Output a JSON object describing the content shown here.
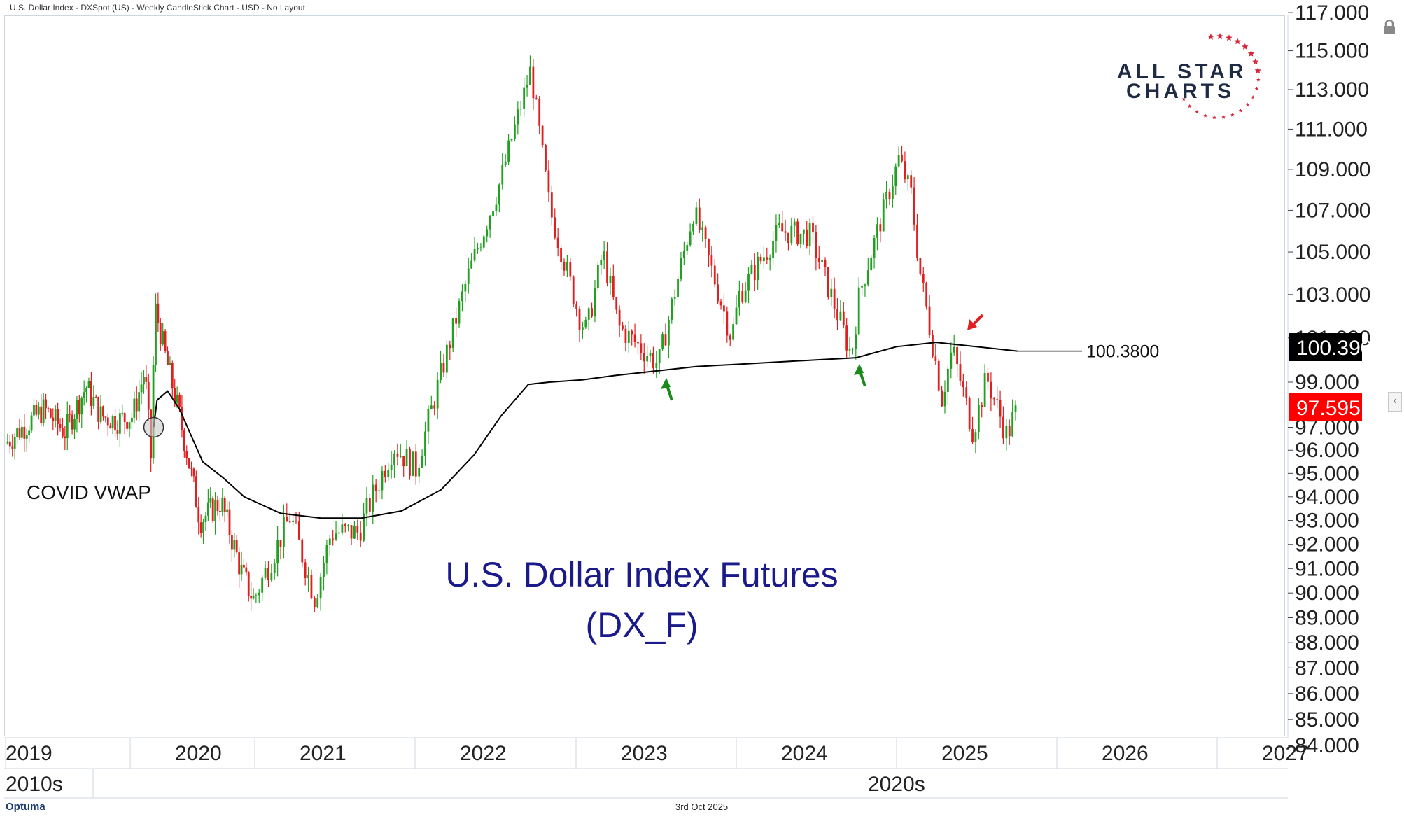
{
  "header": {
    "text": "U.S. Dollar Index - DXSpot (US) - Weekly CandleStick Chart - USD - No Layout"
  },
  "footer": {
    "date": "3rd Oct 2025",
    "brand": "Optuma"
  },
  "logo": {
    "line1": "ALL STAR",
    "line2": "CHARTS",
    "star_color": "#d6263a"
  },
  "chart_data": {
    "type": "candlestick",
    "title": "U.S. Dollar Index Futures",
    "subtitle": "(DX_F)",
    "y_axis": {
      "scale": "log",
      "ylim": [
        84,
        117
      ],
      "ticks": [
        "84.000",
        "85.000",
        "86.000",
        "87.000",
        "88.000",
        "89.000",
        "90.000",
        "91.000",
        "92.000",
        "93.000",
        "94.000",
        "95.000",
        "96.000",
        "97.000",
        "99.000",
        "101.000",
        "103.000",
        "105.000",
        "107.000",
        "109.000",
        "111.000",
        "113.000",
        "115.000",
        "117.000"
      ]
    },
    "x_axis": {
      "years": [
        "2019",
        "2020",
        "2021",
        "2022",
        "2023",
        "2024",
        "2025",
        "2026",
        "2027"
      ],
      "decades": [
        "2010s",
        "2020s"
      ]
    },
    "price_labels": {
      "vwap_value": "100.390",
      "last_price": "97.595",
      "line_label": "100.3800"
    },
    "annotations": {
      "vwap_name": "COVID VWAP"
    },
    "colors": {
      "up": "#22a022",
      "down": "#e02020",
      "vwap": "#000000",
      "last_bg": "#ff0000",
      "vwap_bg": "#000000",
      "arrow_green": "#1a8a1a",
      "arrow_red": "#e02020"
    },
    "price_path": [
      [
        "2019-01-07",
        96.3
      ],
      [
        "2019-03-01",
        97.0
      ],
      [
        "2019-05-01",
        97.8
      ],
      [
        "2019-07-01",
        96.8
      ],
      [
        "2019-09-01",
        98.8
      ],
      [
        "2019-10-15",
        97.5
      ],
      [
        "2019-12-01",
        97.3
      ],
      [
        "2020-01-15",
        97.5
      ],
      [
        "2020-02-20",
        99.5
      ],
      [
        "2020-03-10",
        95.5
      ],
      [
        "2020-03-20",
        102.5
      ],
      [
        "2020-04-20",
        100.2
      ],
      [
        "2020-06-01",
        97.5
      ],
      [
        "2020-08-01",
        93.0
      ],
      [
        "2020-10-01",
        93.8
      ],
      [
        "2020-12-01",
        90.8
      ],
      [
        "2021-01-05",
        89.7
      ],
      [
        "2021-03-30",
        93.2
      ],
      [
        "2021-05-25",
        89.8
      ],
      [
        "2021-07-01",
        92.5
      ],
      [
        "2021-09-01",
        92.5
      ],
      [
        "2021-11-20",
        96.2
      ],
      [
        "2022-01-10",
        95.2
      ],
      [
        "2022-03-07",
        99.3
      ],
      [
        "2022-05-10",
        104.0
      ],
      [
        "2022-07-15",
        108.0
      ],
      [
        "2022-09-27",
        114.0
      ],
      [
        "2022-11-10",
        107.0
      ],
      [
        "2023-01-15",
        102.0
      ],
      [
        "2023-02-01",
        101.3
      ],
      [
        "2023-03-10",
        105.0
      ],
      [
        "2023-04-15",
        101.5
      ],
      [
        "2023-07-15",
        99.8
      ],
      [
        "2023-10-03",
        107.0
      ],
      [
        "2023-12-28",
        101.0
      ],
      [
        "2024-01-15",
        103.0
      ],
      [
        "2024-04-15",
        106.0
      ],
      [
        "2024-06-25",
        105.8
      ],
      [
        "2024-09-27",
        100.2
      ],
      [
        "2024-10-15",
        103.0
      ],
      [
        "2025-01-13",
        109.5
      ],
      [
        "2025-02-10",
        107.8
      ],
      [
        "2025-03-01",
        104.2
      ],
      [
        "2025-04-21",
        98.3
      ],
      [
        "2025-05-15",
        100.5
      ],
      [
        "2025-07-01",
        96.8
      ],
      [
        "2025-08-01",
        99.2
      ],
      [
        "2025-09-17",
        96.6
      ],
      [
        "2025-10-03",
        97.6
      ]
    ],
    "vwap_path": [
      [
        "2020-03-10",
        97.0
      ],
      [
        "2020-03-20",
        98.2
      ],
      [
        "2020-04-20",
        98.6
      ],
      [
        "2020-05-25",
        97.8
      ],
      [
        "2020-08-01",
        95.5
      ],
      [
        "2020-10-01",
        94.8
      ],
      [
        "2020-12-01",
        94.0
      ],
      [
        "2021-03-01",
        93.3
      ],
      [
        "2021-06-01",
        93.1
      ],
      [
        "2021-09-01",
        93.1
      ],
      [
        "2021-12-01",
        93.4
      ],
      [
        "2022-03-01",
        94.3
      ],
      [
        "2022-05-15",
        95.8
      ],
      [
        "2022-07-15",
        97.5
      ],
      [
        "2022-09-15",
        98.9
      ],
      [
        "2022-11-01",
        99.0
      ],
      [
        "2023-01-15",
        99.1
      ],
      [
        "2023-04-01",
        99.3
      ],
      [
        "2023-07-01",
        99.5
      ],
      [
        "2023-10-01",
        99.7
      ],
      [
        "2024-01-01",
        99.8
      ],
      [
        "2024-04-01",
        99.9
      ],
      [
        "2024-07-01",
        100.0
      ],
      [
        "2024-10-01",
        100.1
      ],
      [
        "2025-01-01",
        100.6
      ],
      [
        "2025-04-01",
        100.8
      ],
      [
        "2025-07-01",
        100.6
      ],
      [
        "2025-10-03",
        100.4
      ]
    ]
  }
}
